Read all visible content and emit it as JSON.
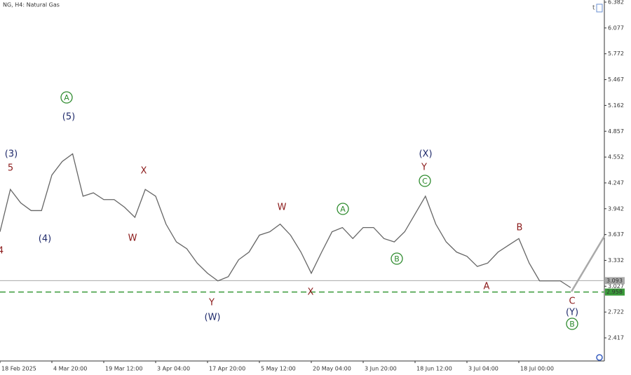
{
  "chart_data": {
    "type": "line",
    "title": "NG, H4:  Natural Gas",
    "categories": [
      "18 Feb 2025",
      null,
      null,
      null,
      null,
      "4 Mar 20:00",
      null,
      null,
      null,
      null,
      "19 Mar 12:00",
      null,
      null,
      null,
      null,
      "3 Apr 04:00",
      null,
      null,
      null,
      null,
      "17 Apr 20:00",
      null,
      null,
      null,
      null,
      "5 May 12:00",
      null,
      null,
      null,
      null,
      "20 May 04:00",
      null,
      null,
      null,
      null,
      "3 Jun 20:00",
      null,
      null,
      null,
      null,
      "18 Jun 12:00",
      null,
      null,
      null,
      null,
      "3 Jul 04:00",
      null,
      null,
      null,
      null,
      "18 Jul 00:00",
      null,
      null,
      null,
      null,
      null
    ],
    "series": [
      {
        "name": "NG",
        "color": "#666666",
        "values": [
          3.67,
          4.17,
          4.01,
          3.92,
          3.92,
          4.34,
          4.5,
          4.59,
          4.09,
          4.13,
          4.05,
          4.05,
          3.96,
          3.84,
          4.17,
          4.09,
          3.76,
          3.55,
          3.47,
          3.3,
          3.18,
          3.09,
          3.14,
          3.34,
          3.43,
          3.63,
          3.67,
          3.76,
          3.63,
          3.43,
          3.18,
          3.43,
          3.67,
          3.72,
          3.59,
          3.72,
          3.72,
          3.59,
          3.55,
          3.67,
          3.88,
          4.09,
          3.76,
          3.55,
          3.43,
          3.38,
          3.26,
          3.3,
          3.43,
          3.51,
          3.59,
          3.3,
          3.09,
          3.09,
          3.09,
          3.01
        ]
      }
    ],
    "ylim": [
      2.144,
      6.407
    ],
    "yticks": [
      6.382,
      6.077,
      5.772,
      5.467,
      5.162,
      4.857,
      4.552,
      4.247,
      3.942,
      3.637,
      3.332,
      3.027,
      2.722,
      2.417
    ],
    "price_lines": [
      {
        "value": 3.093,
        "label": "3.093",
        "color": "#aaaaaa",
        "style": "solid"
      },
      {
        "value": 2.958,
        "label": "2.958",
        "color": "#3a9a3a",
        "style": "dashed"
      }
    ],
    "annotations": [
      {
        "text": "4",
        "color": "#8b1a1a",
        "circled": false
      },
      {
        "text": "(3)",
        "color": "#1f2a6b",
        "circled": false
      },
      {
        "text": "5",
        "color": "#8b1a1a",
        "circled": false
      },
      {
        "text": "A",
        "color": "#2e8b2e",
        "circled": true
      },
      {
        "text": "(5)",
        "color": "#1f2a6b",
        "circled": false
      },
      {
        "text": "(4)",
        "color": "#1f2a6b",
        "circled": false
      },
      {
        "text": "X",
        "color": "#8b1a1a",
        "circled": false
      },
      {
        "text": "W",
        "color": "#8b1a1a",
        "circled": false
      },
      {
        "text": "Y",
        "color": "#8b1a1a",
        "circled": false
      },
      {
        "text": "(W)",
        "color": "#1f2a6b",
        "circled": false
      },
      {
        "text": "W",
        "color": "#8b1a1a",
        "circled": false
      },
      {
        "text": "X",
        "color": "#8b1a1a",
        "circled": false
      },
      {
        "text": "A",
        "color": "#2e8b2e",
        "circled": true
      },
      {
        "text": "B",
        "color": "#2e8b2e",
        "circled": true
      },
      {
        "text": "(X)",
        "color": "#1f2a6b",
        "circled": false
      },
      {
        "text": "Y",
        "color": "#8b1a1a",
        "circled": false
      },
      {
        "text": "C",
        "color": "#2e8b2e",
        "circled": true
      },
      {
        "text": "B",
        "color": "#8b1a1a",
        "circled": false
      },
      {
        "text": "A",
        "color": "#8b1a1a",
        "circled": false
      },
      {
        "text": "C",
        "color": "#8b1a1a",
        "circled": false
      },
      {
        "text": "(Y)",
        "color": "#1f2a6b",
        "circled": false
      },
      {
        "text": "B",
        "color": "#2e8b2e",
        "circled": true
      }
    ]
  }
}
